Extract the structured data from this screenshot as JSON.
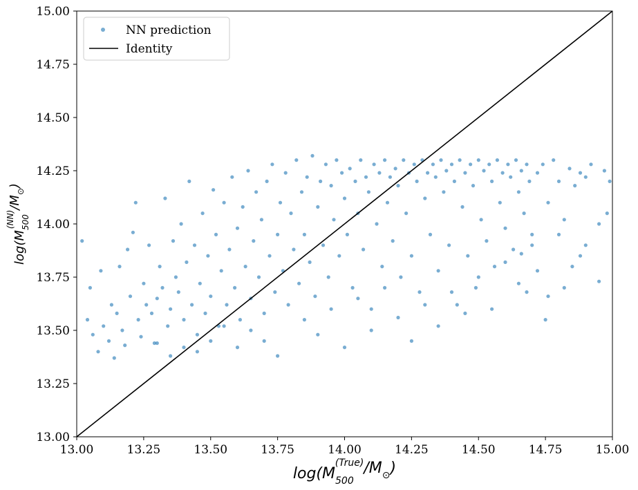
{
  "chart_data": {
    "type": "scatter",
    "title": "",
    "xlabel": "log(M_500^(True)/M_⊙)",
    "ylabel": "log(M_500^(NN)/M_⊙)",
    "xlabel_parts": {
      "base": "log(M",
      "sub": "500",
      "sup": "(True)",
      "tail": "/M",
      "odot": "⊙",
      "end": ")"
    },
    "ylabel_parts": {
      "base": "log(M",
      "sub": "500",
      "sup": "(NN)",
      "tail": "/M",
      "odot": "⊙",
      "end": ")"
    },
    "xlim": [
      13.0,
      15.0
    ],
    "ylim": [
      13.0,
      15.0
    ],
    "xticks": [
      "13.00",
      "13.25",
      "13.50",
      "13.75",
      "14.00",
      "14.25",
      "14.50",
      "14.75",
      "15.00"
    ],
    "yticks": [
      "13.00",
      "13.25",
      "13.50",
      "13.75",
      "14.00",
      "14.25",
      "14.50",
      "14.75",
      "15.00"
    ],
    "legend": {
      "position": "top-left",
      "entries": [
        "NN prediction",
        "Identity"
      ]
    },
    "grid": false,
    "series": [
      {
        "name": "NN prediction",
        "kind": "scatter",
        "color": "#1f77b4",
        "alpha": 0.6,
        "points": [
          [
            13.02,
            13.92
          ],
          [
            13.04,
            13.55
          ],
          [
            13.06,
            13.48
          ],
          [
            13.08,
            13.4
          ],
          [
            13.1,
            13.52
          ],
          [
            13.12,
            13.45
          ],
          [
            13.14,
            13.37
          ],
          [
            13.15,
            13.58
          ],
          [
            13.17,
            13.5
          ],
          [
            13.19,
            13.88
          ],
          [
            13.05,
            13.7
          ],
          [
            13.09,
            13.78
          ],
          [
            13.13,
            13.62
          ],
          [
            13.16,
            13.8
          ],
          [
            13.18,
            13.43
          ],
          [
            13.2,
            13.66
          ],
          [
            13.21,
            13.96
          ],
          [
            13.22,
            14.1
          ],
          [
            13.23,
            13.55
          ],
          [
            13.24,
            13.47
          ],
          [
            13.25,
            13.72
          ],
          [
            13.26,
            13.62
          ],
          [
            13.27,
            13.9
          ],
          [
            13.28,
            13.58
          ],
          [
            13.29,
            13.44
          ],
          [
            13.3,
            13.65
          ],
          [
            13.31,
            13.8
          ],
          [
            13.32,
            13.7
          ],
          [
            13.33,
            14.12
          ],
          [
            13.34,
            13.52
          ],
          [
            13.35,
            13.6
          ],
          [
            13.36,
            13.92
          ],
          [
            13.37,
            13.75
          ],
          [
            13.38,
            13.68
          ],
          [
            13.39,
            14.0
          ],
          [
            13.4,
            13.55
          ],
          [
            13.41,
            13.82
          ],
          [
            13.42,
            14.2
          ],
          [
            13.43,
            13.62
          ],
          [
            13.44,
            13.9
          ],
          [
            13.45,
            13.48
          ],
          [
            13.46,
            13.72
          ],
          [
            13.47,
            14.05
          ],
          [
            13.48,
            13.58
          ],
          [
            13.49,
            13.85
          ],
          [
            13.5,
            13.66
          ],
          [
            13.51,
            14.16
          ],
          [
            13.52,
            13.95
          ],
          [
            13.53,
            13.52
          ],
          [
            13.54,
            13.78
          ],
          [
            13.55,
            14.1
          ],
          [
            13.56,
            13.62
          ],
          [
            13.57,
            13.88
          ],
          [
            13.58,
            14.22
          ],
          [
            13.59,
            13.7
          ],
          [
            13.6,
            13.98
          ],
          [
            13.61,
            13.55
          ],
          [
            13.62,
            14.08
          ],
          [
            13.63,
            13.8
          ],
          [
            13.64,
            14.25
          ],
          [
            13.65,
            13.65
          ],
          [
            13.66,
            13.92
          ],
          [
            13.67,
            14.15
          ],
          [
            13.68,
            13.75
          ],
          [
            13.69,
            14.02
          ],
          [
            13.7,
            13.58
          ],
          [
            13.71,
            14.2
          ],
          [
            13.72,
            13.85
          ],
          [
            13.73,
            14.28
          ],
          [
            13.74,
            13.68
          ],
          [
            13.75,
            13.95
          ],
          [
            13.76,
            14.1
          ],
          [
            13.77,
            13.78
          ],
          [
            13.78,
            14.24
          ],
          [
            13.79,
            13.62
          ],
          [
            13.8,
            14.05
          ],
          [
            13.81,
            13.88
          ],
          [
            13.82,
            14.3
          ],
          [
            13.83,
            13.72
          ],
          [
            13.84,
            14.15
          ],
          [
            13.85,
            13.95
          ],
          [
            13.86,
            14.22
          ],
          [
            13.87,
            13.82
          ],
          [
            13.88,
            14.32
          ],
          [
            13.89,
            13.66
          ],
          [
            13.9,
            14.08
          ],
          [
            13.91,
            14.2
          ],
          [
            13.92,
            13.9
          ],
          [
            13.93,
            14.28
          ],
          [
            13.94,
            13.75
          ],
          [
            13.95,
            14.18
          ],
          [
            13.96,
            14.02
          ],
          [
            13.97,
            14.3
          ],
          [
            13.98,
            13.85
          ],
          [
            13.99,
            14.24
          ],
          [
            14.0,
            14.12
          ],
          [
            14.01,
            13.95
          ],
          [
            14.02,
            14.26
          ],
          [
            14.03,
            13.7
          ],
          [
            14.04,
            14.2
          ],
          [
            14.05,
            14.05
          ],
          [
            14.06,
            14.3
          ],
          [
            14.07,
            13.88
          ],
          [
            14.08,
            14.22
          ],
          [
            14.09,
            14.15
          ],
          [
            14.1,
            13.6
          ],
          [
            14.11,
            14.28
          ],
          [
            14.12,
            14.0
          ],
          [
            14.13,
            14.24
          ],
          [
            14.14,
            13.8
          ],
          [
            14.15,
            14.3
          ],
          [
            14.16,
            14.1
          ],
          [
            14.17,
            14.22
          ],
          [
            14.18,
            13.92
          ],
          [
            14.19,
            14.26
          ],
          [
            14.2,
            14.18
          ],
          [
            14.21,
            13.75
          ],
          [
            14.22,
            14.3
          ],
          [
            14.23,
            14.05
          ],
          [
            14.24,
            14.24
          ],
          [
            14.25,
            13.85
          ],
          [
            14.26,
            14.28
          ],
          [
            14.27,
            14.2
          ],
          [
            14.28,
            13.68
          ],
          [
            14.29,
            14.3
          ],
          [
            14.3,
            14.12
          ],
          [
            14.31,
            14.24
          ],
          [
            14.32,
            13.95
          ],
          [
            14.33,
            14.28
          ],
          [
            14.34,
            14.22
          ],
          [
            14.35,
            13.78
          ],
          [
            14.36,
            14.3
          ],
          [
            14.37,
            14.15
          ],
          [
            14.38,
            14.25
          ],
          [
            14.39,
            13.9
          ],
          [
            14.4,
            14.28
          ],
          [
            14.41,
            14.2
          ],
          [
            14.42,
            13.62
          ],
          [
            14.43,
            14.3
          ],
          [
            14.44,
            14.08
          ],
          [
            14.45,
            14.24
          ],
          [
            14.46,
            13.85
          ],
          [
            14.47,
            14.28
          ],
          [
            14.48,
            14.18
          ],
          [
            14.49,
            13.7
          ],
          [
            14.5,
            14.3
          ],
          [
            14.51,
            14.02
          ],
          [
            14.52,
            14.25
          ],
          [
            14.53,
            13.92
          ],
          [
            14.54,
            14.28
          ],
          [
            14.55,
            14.2
          ],
          [
            14.56,
            13.8
          ],
          [
            14.57,
            14.3
          ],
          [
            14.58,
            14.1
          ],
          [
            14.59,
            14.24
          ],
          [
            14.6,
            13.98
          ],
          [
            14.61,
            14.28
          ],
          [
            14.62,
            14.22
          ],
          [
            14.63,
            13.88
          ],
          [
            14.64,
            14.3
          ],
          [
            14.65,
            14.15
          ],
          [
            14.66,
            14.25
          ],
          [
            14.67,
            14.05
          ],
          [
            14.68,
            14.28
          ],
          [
            14.69,
            14.2
          ],
          [
            14.7,
            13.95
          ],
          [
            14.72,
            14.24
          ],
          [
            14.74,
            14.28
          ],
          [
            14.76,
            14.1
          ],
          [
            14.78,
            14.3
          ],
          [
            14.8,
            14.2
          ],
          [
            14.82,
            14.02
          ],
          [
            14.84,
            14.26
          ],
          [
            14.86,
            14.18
          ],
          [
            14.88,
            14.24
          ],
          [
            14.9,
            14.22
          ],
          [
            14.92,
            14.28
          ],
          [
            14.95,
            14.0
          ],
          [
            14.97,
            14.25
          ],
          [
            14.99,
            14.2
          ],
          [
            13.85,
            13.55
          ],
          [
            13.9,
            13.48
          ],
          [
            13.95,
            13.6
          ],
          [
            14.0,
            13.42
          ],
          [
            14.05,
            13.65
          ],
          [
            14.1,
            13.5
          ],
          [
            14.15,
            13.7
          ],
          [
            14.2,
            13.56
          ],
          [
            14.25,
            13.45
          ],
          [
            14.3,
            13.62
          ],
          [
            14.35,
            13.52
          ],
          [
            14.4,
            13.68
          ],
          [
            14.45,
            13.58
          ],
          [
            14.5,
            13.75
          ],
          [
            14.55,
            13.6
          ],
          [
            14.6,
            13.82
          ],
          [
            14.65,
            13.72
          ],
          [
            14.7,
            13.9
          ],
          [
            14.75,
            13.55
          ],
          [
            14.8,
            13.95
          ],
          [
            13.7,
            13.45
          ],
          [
            13.75,
            13.38
          ],
          [
            13.65,
            13.5
          ],
          [
            13.6,
            13.42
          ],
          [
            13.55,
            13.52
          ],
          [
            13.5,
            13.45
          ],
          [
            13.45,
            13.4
          ],
          [
            13.4,
            13.42
          ],
          [
            13.35,
            13.38
          ],
          [
            13.3,
            13.44
          ],
          [
            14.82,
            13.7
          ],
          [
            14.85,
            13.8
          ],
          [
            14.9,
            13.9
          ],
          [
            14.95,
            13.73
          ],
          [
            14.98,
            14.05
          ],
          [
            14.88,
            13.85
          ],
          [
            14.76,
            13.66
          ],
          [
            14.72,
            13.78
          ],
          [
            14.68,
            13.68
          ],
          [
            14.66,
            13.86
          ]
        ]
      },
      {
        "name": "Identity",
        "kind": "line",
        "color": "#000000",
        "x": [
          13.0,
          15.0
        ],
        "y": [
          13.0,
          15.0
        ]
      }
    ]
  }
}
